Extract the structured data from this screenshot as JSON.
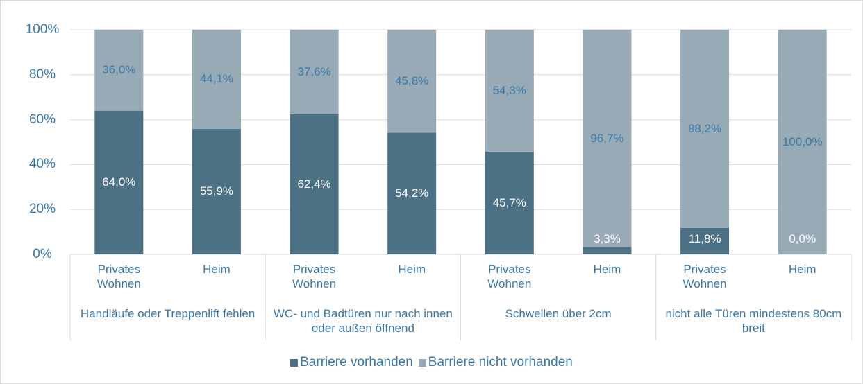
{
  "chart_data": {
    "type": "stacked_bar",
    "categories": [
      "Privates Wohnen",
      "Heim",
      "Privates Wohnen",
      "Heim",
      "Privates Wohnen",
      "Heim",
      "Privates Wohnen",
      "Heim"
    ],
    "groups": [
      "Handläufe oder Treppenlift fehlen",
      "WC- und Badtüren nur nach innen oder außen öffnend",
      "Schwellen über 2cm",
      "nicht alle Türen mindestens 80cm breit"
    ],
    "series": [
      {
        "name": "Barriere vorhanden",
        "color": "#4d7184",
        "values": [
          64.0,
          55.9,
          62.4,
          54.2,
          45.7,
          3.3,
          11.8,
          0.0
        ],
        "value_labels": [
          "64,0%",
          "55,9%",
          "62,4%",
          "54,2%",
          "45,7%",
          "3,3%",
          "11,8%",
          "0,0%"
        ]
      },
      {
        "name": "Barriere nicht vorhanden",
        "color": "#97aab5",
        "values": [
          36.0,
          44.1,
          37.6,
          45.8,
          54.3,
          96.7,
          88.2,
          100.0
        ],
        "value_labels": [
          "36,0%",
          "44,1%",
          "37,6%",
          "45,8%",
          "54,3%",
          "96,7%",
          "88,2%",
          "100,0%"
        ]
      }
    ],
    "ylim": [
      0,
      100
    ],
    "yticks": [
      {
        "value": 0,
        "label": "0%"
      },
      {
        "value": 20,
        "label": "20%"
      },
      {
        "value": 40,
        "label": "40%"
      },
      {
        "value": 60,
        "label": "60%"
      },
      {
        "value": 80,
        "label": "80%"
      },
      {
        "value": 100,
        "label": "100%"
      }
    ],
    "grid": true,
    "legend": "bottom"
  }
}
